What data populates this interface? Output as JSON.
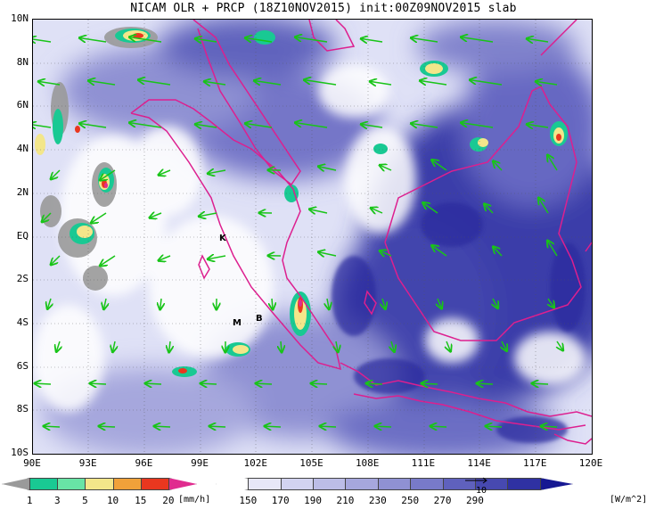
{
  "title": "NICAM OLR + PRCP (18Z10NOV2015) init:00Z09NOV2015 slab",
  "lat_labels": [
    "10N",
    "8N",
    "6N",
    "4N",
    "2N",
    "EQ",
    "2S",
    "4S",
    "6S",
    "8S",
    "10S"
  ],
  "lon_labels": [
    "90E",
    "93E",
    "96E",
    "99E",
    "102E",
    "105E",
    "108E",
    "111E",
    "114E",
    "117E",
    "120E"
  ],
  "map_labels": {
    "k": "K",
    "m": "M",
    "b": "B"
  },
  "prcp_bar": {
    "ticks": [
      "1",
      "3",
      "5",
      "10",
      "15",
      "20"
    ],
    "unit": "[mm/h]",
    "colors": [
      "#9a9a9a",
      "#19c993",
      "#68e4a6",
      "#f3e68a",
      "#f0a13a",
      "#e9371f",
      "#e02c8f"
    ]
  },
  "olr_bar": {
    "ticks": [
      "150",
      "170",
      "190",
      "210",
      "230",
      "250",
      "270",
      "290"
    ],
    "unit": "[W/m^2]",
    "colors": [
      "#ffffff",
      "#e7e7f8",
      "#d2d3f0",
      "#bcbde7",
      "#a6a7dd",
      "#8f91d3",
      "#787ac9",
      "#5f61bd",
      "#4749b0",
      "#2f31a2",
      "#161892"
    ]
  },
  "vector_ref": "10",
  "colors": {
    "coastline": "#dd1f8f",
    "wind_vectors": "#18c418",
    "grid": "#555555"
  }
}
